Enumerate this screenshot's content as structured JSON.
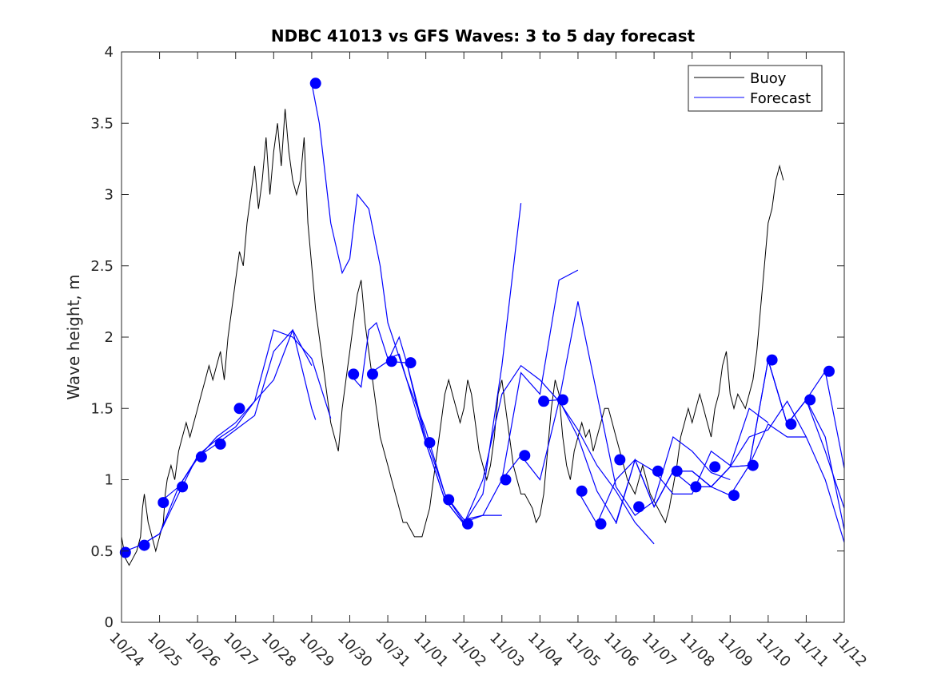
{
  "chart_data": {
    "type": "line",
    "title": "NDBC 41013 vs GFS Waves: 3 to 5 day forecast",
    "xlabel": "",
    "ylabel": "Wave height, m",
    "xlim_days": [
      0,
      19
    ],
    "ylim": [
      0,
      4
    ],
    "grid": false,
    "legend_position": "top-right",
    "x_tick_labels": [
      "10/24",
      "10/25",
      "10/26",
      "10/27",
      "10/28",
      "10/29",
      "10/30",
      "10/31",
      "11/01",
      "11/02",
      "11/03",
      "11/04",
      "11/05",
      "11/06",
      "11/07",
      "11/08",
      "11/09",
      "11/10",
      "11/11",
      "11/12"
    ],
    "y_tick_labels": [
      "0",
      "0.5",
      "1",
      "1.5",
      "2",
      "2.5",
      "3",
      "3.5",
      "4"
    ],
    "y_ticks": [
      0,
      0.5,
      1,
      1.5,
      2,
      2.5,
      3,
      3.5,
      4
    ],
    "colors": {
      "buoy": "#000000",
      "forecast": "#0000ff",
      "axis": "#262626"
    },
    "series": [
      {
        "name": "Buoy",
        "style": "line",
        "x_days": [
          0,
          0.1,
          0.2,
          0.3,
          0.4,
          0.5,
          0.55,
          0.6,
          0.65,
          0.7,
          0.8,
          0.9,
          1.0,
          1.1,
          1.15,
          1.2,
          1.3,
          1.4,
          1.5,
          1.6,
          1.7,
          1.8,
          1.9,
          2.0,
          2.1,
          2.2,
          2.3,
          2.4,
          2.5,
          2.6,
          2.7,
          2.8,
          2.9,
          3.0,
          3.1,
          3.2,
          3.3,
          3.4,
          3.5,
          3.6,
          3.7,
          3.8,
          3.9,
          4.0,
          4.1,
          4.2,
          4.3,
          4.4,
          4.5,
          4.6,
          4.7,
          4.8,
          4.9,
          5.0,
          5.1,
          5.2,
          5.3,
          5.4,
          5.5,
          5.6,
          5.7,
          5.8,
          5.9,
          6.0,
          6.1,
          6.2,
          6.3,
          6.4,
          6.5,
          6.6,
          6.7,
          6.8,
          6.9,
          7.0,
          7.1,
          7.2,
          7.3,
          7.4,
          7.5,
          7.6,
          7.7,
          7.8,
          7.9,
          8.0,
          8.1,
          8.2,
          8.3,
          8.4,
          8.5,
          8.6,
          8.7,
          8.8,
          8.9,
          9.0,
          9.1,
          9.2,
          9.3,
          9.4,
          9.5,
          9.6,
          9.7,
          9.8,
          9.9,
          10.0,
          10.1,
          10.2,
          10.3,
          10.4,
          10.5,
          10.6,
          10.7,
          10.8,
          10.9,
          11.0,
          11.1,
          11.2,
          11.3,
          11.4,
          11.5,
          11.6,
          11.7,
          11.8,
          11.9,
          12.0,
          12.1,
          12.2,
          12.3,
          12.4,
          12.5,
          12.6,
          12.7,
          12.8,
          12.9,
          13.0,
          13.1,
          13.2,
          13.3,
          13.4,
          13.5,
          13.6,
          13.7,
          13.8,
          13.9,
          14.0,
          14.1,
          14.2,
          14.3,
          14.4,
          14.5,
          14.6,
          14.7,
          14.8,
          14.9,
          15.0,
          15.1,
          15.2,
          15.3,
          15.4,
          15.5,
          15.6,
          15.7,
          15.8,
          15.9,
          16.0,
          16.1,
          16.2,
          16.3,
          16.4,
          16.5,
          16.6,
          16.7,
          16.8,
          16.9,
          17.0,
          17.1,
          17.2,
          17.3,
          17.4,
          17.5,
          17.6,
          17.7,
          17.8,
          17.9,
          18.0,
          18.05,
          18.1,
          18.15,
          18.2,
          18.25
        ],
        "values": [
          0.6,
          0.45,
          0.4,
          0.45,
          0.5,
          0.6,
          0.8,
          0.9,
          0.8,
          0.7,
          0.6,
          0.5,
          0.6,
          0.7,
          0.9,
          1.0,
          1.1,
          1.0,
          1.2,
          1.3,
          1.4,
          1.3,
          1.4,
          1.5,
          1.6,
          1.7,
          1.8,
          1.7,
          1.8,
          1.9,
          1.7,
          2.0,
          2.2,
          2.4,
          2.6,
          2.5,
          2.8,
          3.0,
          3.2,
          2.9,
          3.1,
          3.4,
          3.0,
          3.3,
          3.5,
          3.2,
          3.6,
          3.3,
          3.1,
          3.0,
          3.1,
          3.4,
          2.8,
          2.5,
          2.2,
          2.0,
          1.8,
          1.6,
          1.4,
          1.3,
          1.2,
          1.5,
          1.7,
          1.9,
          2.1,
          2.3,
          2.4,
          2.1,
          1.9,
          1.7,
          1.5,
          1.3,
          1.2,
          1.1,
          1.0,
          0.9,
          0.8,
          0.7,
          0.7,
          0.65,
          0.6,
          0.6,
          0.6,
          0.7,
          0.8,
          1.0,
          1.2,
          1.4,
          1.6,
          1.7,
          1.6,
          1.5,
          1.4,
          1.5,
          1.7,
          1.6,
          1.4,
          1.2,
          1.1,
          1.0,
          1.1,
          1.3,
          1.6,
          1.7,
          1.5,
          1.3,
          1.1,
          1.0,
          0.9,
          0.9,
          0.85,
          0.8,
          0.7,
          0.75,
          0.9,
          1.2,
          1.5,
          1.7,
          1.6,
          1.3,
          1.1,
          1.0,
          1.2,
          1.3,
          1.4,
          1.3,
          1.35,
          1.2,
          1.3,
          1.4,
          1.5,
          1.5,
          1.4,
          1.3,
          1.2,
          1.1,
          1.0,
          0.95,
          0.9,
          1.0,
          1.1,
          1.0,
          0.9,
          0.85,
          0.8,
          0.75,
          0.7,
          0.8,
          0.95,
          1.1,
          1.3,
          1.4,
          1.5,
          1.4,
          1.5,
          1.6,
          1.5,
          1.4,
          1.3,
          1.5,
          1.6,
          1.8,
          1.9,
          1.6,
          1.5,
          1.6,
          1.55,
          1.5,
          1.6,
          1.7,
          1.9,
          2.2,
          2.5,
          2.8,
          2.9,
          3.1,
          3.2,
          3.1
        ]
      },
      {
        "name": "Forecast",
        "style": "lines",
        "runs": [
          {
            "x_days": [
              0,
              0.5,
              1,
              1.5,
              2,
              2.5,
              3,
              3.5,
              4,
              4.5,
              5
            ],
            "values": [
              0.49,
              0.54,
              0.62,
              0.9,
              1.17,
              1.28,
              1.37,
              1.55,
              1.7,
              2.05,
              1.8
            ]
          },
          {
            "x_days": [
              0.5,
              1,
              1.5,
              2,
              2.5,
              3,
              3.5,
              4,
              4.5,
              5,
              5.1
            ],
            "values": [
              0.54,
              0.62,
              0.95,
              1.16,
              1.25,
              1.35,
              1.45,
              1.9,
              2.05,
              1.5,
              1.42
            ]
          },
          {
            "x_days": [
              1,
              1.5,
              2,
              2.5,
              3,
              3.5,
              4,
              4.5,
              5,
              5.5
            ],
            "values": [
              0.84,
              0.95,
              1.15,
              1.3,
              1.4,
              1.55,
              2.05,
              2.0,
              1.85,
              1.43
            ]
          },
          {
            "x_days": [
              5,
              5.2,
              5.5,
              5.8,
              6,
              6.2,
              6.5,
              6.8,
              7,
              7.5,
              8,
              8.5,
              9,
              9.5,
              10
            ],
            "values": [
              3.78,
              3.5,
              2.8,
              2.45,
              2.55,
              3.0,
              2.9,
              2.5,
              2.1,
              1.7,
              1.35,
              0.9,
              0.7,
              0.75,
              0.75
            ]
          },
          {
            "x_days": [
              6,
              6.3,
              6.5,
              6.7,
              7,
              7.3,
              7.5,
              8,
              8.5,
              9,
              9.5,
              10,
              10.5
            ],
            "values": [
              1.74,
              1.65,
              2.05,
              2.1,
              1.85,
              1.88,
              1.7,
              1.26,
              0.86,
              0.69,
              0.9,
              1.8,
              2.94
            ]
          },
          {
            "x_days": [
              6.5,
              7,
              7.3,
              7.5,
              8,
              8.5,
              9,
              9.5,
              10,
              10.5,
              11,
              11.5,
              12
            ],
            "values": [
              1.74,
              1.83,
              2.0,
              1.82,
              1.3,
              0.9,
              0.72,
              0.75,
              1.0,
              1.75,
              1.6,
              2.4,
              2.47
            ]
          },
          {
            "x_days": [
              7,
              7.5,
              8,
              8.5,
              9,
              9.5,
              10,
              10.5,
              11,
              11.5,
              12,
              12.5,
              13,
              13.5,
              14
            ],
            "values": [
              1.83,
              1.82,
              1.26,
              0.86,
              0.69,
              1.0,
              1.6,
              1.8,
              1.7,
              1.55,
              1.35,
              1.1,
              0.92,
              0.7,
              0.55
            ]
          },
          {
            "x_days": [
              10,
              10.5,
              11,
              11.5,
              12,
              12.5,
              13,
              13.5,
              14,
              14.5,
              15,
              15.5,
              16
            ],
            "values": [
              1.0,
              1.17,
              1.0,
              1.55,
              2.25,
              1.6,
              0.95,
              0.75,
              0.85,
              1.3,
              1.2,
              1.05,
              1.0
            ]
          },
          {
            "x_days": [
              11,
              11.5,
              12,
              12.5,
              13,
              13.5,
              14,
              14.5,
              15,
              15.5,
              16,
              16.5,
              17
            ],
            "values": [
              1.55,
              1.56,
              1.3,
              0.92,
              0.7,
              1.14,
              1.06,
              0.9,
              0.9,
              1.2,
              1.1,
              1.5,
              1.4
            ]
          },
          {
            "x_days": [
              12,
              12.5,
              13,
              13.5,
              14,
              14.5,
              15,
              15.5,
              16,
              16.5,
              17,
              17.5,
              18
            ],
            "values": [
              0.92,
              0.69,
              1.0,
              1.14,
              0.81,
              1.06,
              1.06,
              0.95,
              1.09,
              1.3,
              1.35,
              1.55,
              1.3
            ]
          },
          {
            "x_days": [
              13,
              13.5,
              14,
              14.5,
              15,
              15.5,
              16,
              16.5,
              17,
              17.5,
              18,
              18.5,
              19
            ],
            "values": [
              0.69,
              1.14,
              0.81,
              1.06,
              0.95,
              0.95,
              1.09,
              1.1,
              1.84,
              1.39,
              1.56,
              1.2,
              0.8
            ]
          },
          {
            "x_days": [
              14,
              14.5,
              15,
              15.5,
              16,
              16.5,
              17,
              17.5,
              18,
              18.5,
              19
            ],
            "values": [
              0.81,
              1.06,
              1.06,
              0.95,
              0.89,
              1.1,
              1.84,
              1.39,
              1.56,
              1.3,
              0.65
            ]
          },
          {
            "x_days": [
              15,
              15.5,
              16,
              16.5,
              17,
              17.5,
              18,
              18.5,
              19
            ],
            "values": [
              1.06,
              0.95,
              1.09,
              1.1,
              1.39,
              1.3,
              1.3,
              1.0,
              0.56
            ]
          },
          {
            "x_days": [
              17,
              17.5,
              18,
              18.5,
              19
            ],
            "values": [
              1.84,
              1.39,
              1.56,
              1.76,
              1.08
            ]
          }
        ],
        "markers": {
          "x_days": [
            0.1,
            0.6,
            1.1,
            1.6,
            2.1,
            2.6,
            3.1,
            5.1,
            6.1,
            6.6,
            7.1,
            7.6,
            8.1,
            8.6,
            9.1,
            10.1,
            10.6,
            11.1,
            11.6,
            12.1,
            12.6,
            13.1,
            13.6,
            14.1,
            14.6,
            15.1,
            15.6,
            16.1,
            16.6,
            17.1,
            17.6,
            18.1,
            18.6
          ],
          "values": [
            0.49,
            0.54,
            0.84,
            0.95,
            1.16,
            1.25,
            1.5,
            3.78,
            1.74,
            1.74,
            1.83,
            1.82,
            1.26,
            0.86,
            0.69,
            1.0,
            1.17,
            1.55,
            1.56,
            0.92,
            0.69,
            1.14,
            0.81,
            1.06,
            1.06,
            0.95,
            1.09,
            0.89,
            1.1,
            1.84,
            1.39,
            1.56,
            1.76
          ]
        }
      }
    ]
  }
}
